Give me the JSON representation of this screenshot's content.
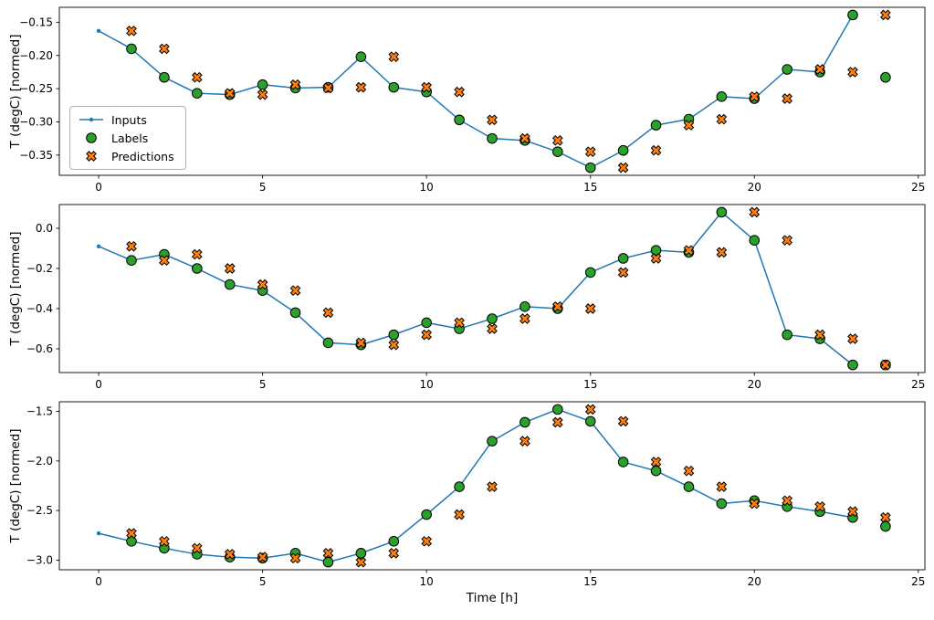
{
  "figure": {
    "xlabel": "Time [h]",
    "background": "#ffffff"
  },
  "chart_data": [
    {
      "type": "line",
      "title": "",
      "ylabel": "T (degC) [normed]",
      "xlabel": "",
      "xlim": [
        -1.2,
        25.2
      ],
      "ylim": [
        -0.3805,
        -0.1275
      ],
      "grid": false,
      "xticks": {
        "values": [
          0,
          5,
          10,
          15,
          20,
          25
        ],
        "labels": [
          "0",
          "5",
          "10",
          "15",
          "20",
          "25"
        ]
      },
      "yticks": {
        "values": [
          -0.15,
          -0.2,
          -0.25,
          -0.3,
          -0.35
        ],
        "labels": [
          "−0.15",
          "−0.20",
          "−0.25",
          "−0.30",
          "−0.35"
        ]
      },
      "legend": {
        "visible": true,
        "position": "center left",
        "entries": [
          "Inputs",
          "Labels",
          "Predictions"
        ]
      },
      "series": [
        {
          "name": "Inputs",
          "marker": "line-dot",
          "color": "#1f77b4",
          "x": [
            0,
            1,
            2,
            3,
            4,
            5,
            6,
            7,
            8,
            9,
            10,
            11,
            12,
            13,
            14,
            15,
            16,
            17,
            18,
            19,
            20,
            21,
            22,
            23
          ],
          "y": [
            -0.163,
            -0.19,
            -0.233,
            -0.257,
            -0.259,
            -0.244,
            -0.249,
            -0.248,
            -0.202,
            -0.248,
            -0.255,
            -0.297,
            -0.325,
            -0.328,
            -0.345,
            -0.369,
            -0.343,
            -0.305,
            -0.296,
            -0.262,
            -0.265,
            -0.221,
            -0.225,
            -0.139
          ]
        },
        {
          "name": "Labels",
          "marker": "circle",
          "color": "#2ca02c",
          "edge": "#000000",
          "x": [
            1,
            2,
            3,
            4,
            5,
            6,
            7,
            8,
            9,
            10,
            11,
            12,
            13,
            14,
            15,
            16,
            17,
            18,
            19,
            20,
            21,
            22,
            23,
            24
          ],
          "y": [
            -0.19,
            -0.233,
            -0.257,
            -0.259,
            -0.244,
            -0.249,
            -0.248,
            -0.202,
            -0.248,
            -0.255,
            -0.297,
            -0.325,
            -0.328,
            -0.345,
            -0.369,
            -0.343,
            -0.305,
            -0.296,
            -0.262,
            -0.265,
            -0.221,
            -0.225,
            -0.139,
            -0.233
          ]
        },
        {
          "name": "Predictions",
          "marker": "x-filled",
          "color": "#ff7f0e",
          "edge": "#000000",
          "x": [
            1,
            2,
            3,
            4,
            5,
            6,
            7,
            8,
            9,
            10,
            11,
            12,
            13,
            14,
            15,
            16,
            17,
            18,
            19,
            20,
            21,
            22,
            23,
            24
          ],
          "y": [
            -0.163,
            -0.19,
            -0.233,
            -0.257,
            -0.259,
            -0.244,
            -0.249,
            -0.248,
            -0.202,
            -0.248,
            -0.255,
            -0.297,
            -0.325,
            -0.328,
            -0.345,
            -0.369,
            -0.343,
            -0.305,
            -0.296,
            -0.262,
            -0.265,
            -0.221,
            -0.225,
            -0.139
          ]
        }
      ]
    },
    {
      "type": "line",
      "title": "",
      "ylabel": "T (degC) [normed]",
      "xlabel": "",
      "xlim": [
        -1.2,
        25.2
      ],
      "ylim": [
        -0.718,
        0.118
      ],
      "grid": false,
      "xticks": {
        "values": [
          0,
          5,
          10,
          15,
          20,
          25
        ],
        "labels": [
          "0",
          "5",
          "10",
          "15",
          "20",
          "25"
        ]
      },
      "yticks": {
        "values": [
          0.0,
          -0.2,
          -0.4,
          -0.6
        ],
        "labels": [
          "0.0",
          "−0.2",
          "−0.4",
          "−0.6"
        ]
      },
      "legend": {
        "visible": false
      },
      "series": [
        {
          "name": "Inputs",
          "marker": "line-dot",
          "color": "#1f77b4",
          "x": [
            0,
            1,
            2,
            3,
            4,
            5,
            6,
            7,
            8,
            9,
            10,
            11,
            12,
            13,
            14,
            15,
            16,
            17,
            18,
            19,
            20,
            21,
            22,
            23
          ],
          "y": [
            -0.09,
            -0.16,
            -0.13,
            -0.2,
            -0.28,
            -0.31,
            -0.42,
            -0.57,
            -0.58,
            -0.53,
            -0.47,
            -0.5,
            -0.45,
            -0.39,
            -0.4,
            -0.22,
            -0.15,
            -0.11,
            -0.12,
            0.08,
            -0.06,
            -0.53,
            -0.55,
            -0.68
          ]
        },
        {
          "name": "Labels",
          "marker": "circle",
          "color": "#2ca02c",
          "edge": "#000000",
          "x": [
            1,
            2,
            3,
            4,
            5,
            6,
            7,
            8,
            9,
            10,
            11,
            12,
            13,
            14,
            15,
            16,
            17,
            18,
            19,
            20,
            21,
            22,
            23,
            24
          ],
          "y": [
            -0.16,
            -0.13,
            -0.2,
            -0.28,
            -0.31,
            -0.42,
            -0.57,
            -0.58,
            -0.53,
            -0.47,
            -0.5,
            -0.45,
            -0.39,
            -0.4,
            -0.22,
            -0.15,
            -0.11,
            -0.12,
            0.08,
            -0.06,
            -0.53,
            -0.55,
            -0.68,
            -0.68
          ]
        },
        {
          "name": "Predictions",
          "marker": "x-filled",
          "color": "#ff7f0e",
          "edge": "#000000",
          "x": [
            1,
            2,
            3,
            4,
            5,
            6,
            7,
            8,
            9,
            10,
            11,
            12,
            13,
            14,
            15,
            16,
            17,
            18,
            19,
            20,
            21,
            22,
            23,
            24
          ],
          "y": [
            -0.09,
            -0.16,
            -0.13,
            -0.2,
            -0.28,
            -0.31,
            -0.42,
            -0.57,
            -0.58,
            -0.53,
            -0.47,
            -0.5,
            -0.45,
            -0.39,
            -0.4,
            -0.22,
            -0.15,
            -0.11,
            -0.12,
            0.08,
            -0.06,
            -0.53,
            -0.55,
            -0.68
          ]
        }
      ]
    },
    {
      "type": "line",
      "title": "",
      "ylabel": "T (degC) [normed]",
      "xlabel": "Time [h]",
      "xlim": [
        -1.2,
        25.2
      ],
      "ylim": [
        -3.097,
        -1.403
      ],
      "grid": false,
      "xticks": {
        "values": [
          0,
          5,
          10,
          15,
          20,
          25
        ],
        "labels": [
          "0",
          "5",
          "10",
          "15",
          "20",
          "25"
        ]
      },
      "yticks": {
        "values": [
          -1.5,
          -2.0,
          -2.5,
          -3.0
        ],
        "labels": [
          "−1.5",
          "−2.0",
          "−2.5",
          "−3.0"
        ]
      },
      "legend": {
        "visible": false
      },
      "series": [
        {
          "name": "Inputs",
          "marker": "line-dot",
          "color": "#1f77b4",
          "x": [
            0,
            1,
            2,
            3,
            4,
            5,
            6,
            7,
            8,
            9,
            10,
            11,
            12,
            13,
            14,
            15,
            16,
            17,
            18,
            19,
            20,
            21,
            22,
            23
          ],
          "y": [
            -2.73,
            -2.81,
            -2.88,
            -2.94,
            -2.97,
            -2.98,
            -2.93,
            -3.02,
            -2.93,
            -2.81,
            -2.54,
            -2.26,
            -1.8,
            -1.61,
            -1.48,
            -1.6,
            -2.01,
            -2.1,
            -2.26,
            -2.43,
            -2.4,
            -2.46,
            -2.51,
            -2.57
          ]
        },
        {
          "name": "Labels",
          "marker": "circle",
          "color": "#2ca02c",
          "edge": "#000000",
          "x": [
            1,
            2,
            3,
            4,
            5,
            6,
            7,
            8,
            9,
            10,
            11,
            12,
            13,
            14,
            15,
            16,
            17,
            18,
            19,
            20,
            21,
            22,
            23,
            24
          ],
          "y": [
            -2.81,
            -2.88,
            -2.94,
            -2.97,
            -2.98,
            -2.93,
            -3.02,
            -2.93,
            -2.81,
            -2.54,
            -2.26,
            -1.8,
            -1.61,
            -1.48,
            -1.6,
            -2.01,
            -2.1,
            -2.26,
            -2.43,
            -2.4,
            -2.46,
            -2.51,
            -2.57,
            -2.66
          ]
        },
        {
          "name": "Predictions",
          "marker": "x-filled",
          "color": "#ff7f0e",
          "edge": "#000000",
          "x": [
            1,
            2,
            3,
            4,
            5,
            6,
            7,
            8,
            9,
            10,
            11,
            12,
            13,
            14,
            15,
            16,
            17,
            18,
            19,
            20,
            21,
            22,
            23,
            24
          ],
          "y": [
            -2.73,
            -2.81,
            -2.88,
            -2.94,
            -2.97,
            -2.98,
            -2.93,
            -3.02,
            -2.93,
            -2.81,
            -2.54,
            -2.26,
            -1.8,
            -1.61,
            -1.48,
            -1.6,
            -2.01,
            -2.1,
            -2.26,
            -2.43,
            -2.4,
            -2.46,
            -2.51,
            -2.57
          ]
        }
      ]
    }
  ]
}
